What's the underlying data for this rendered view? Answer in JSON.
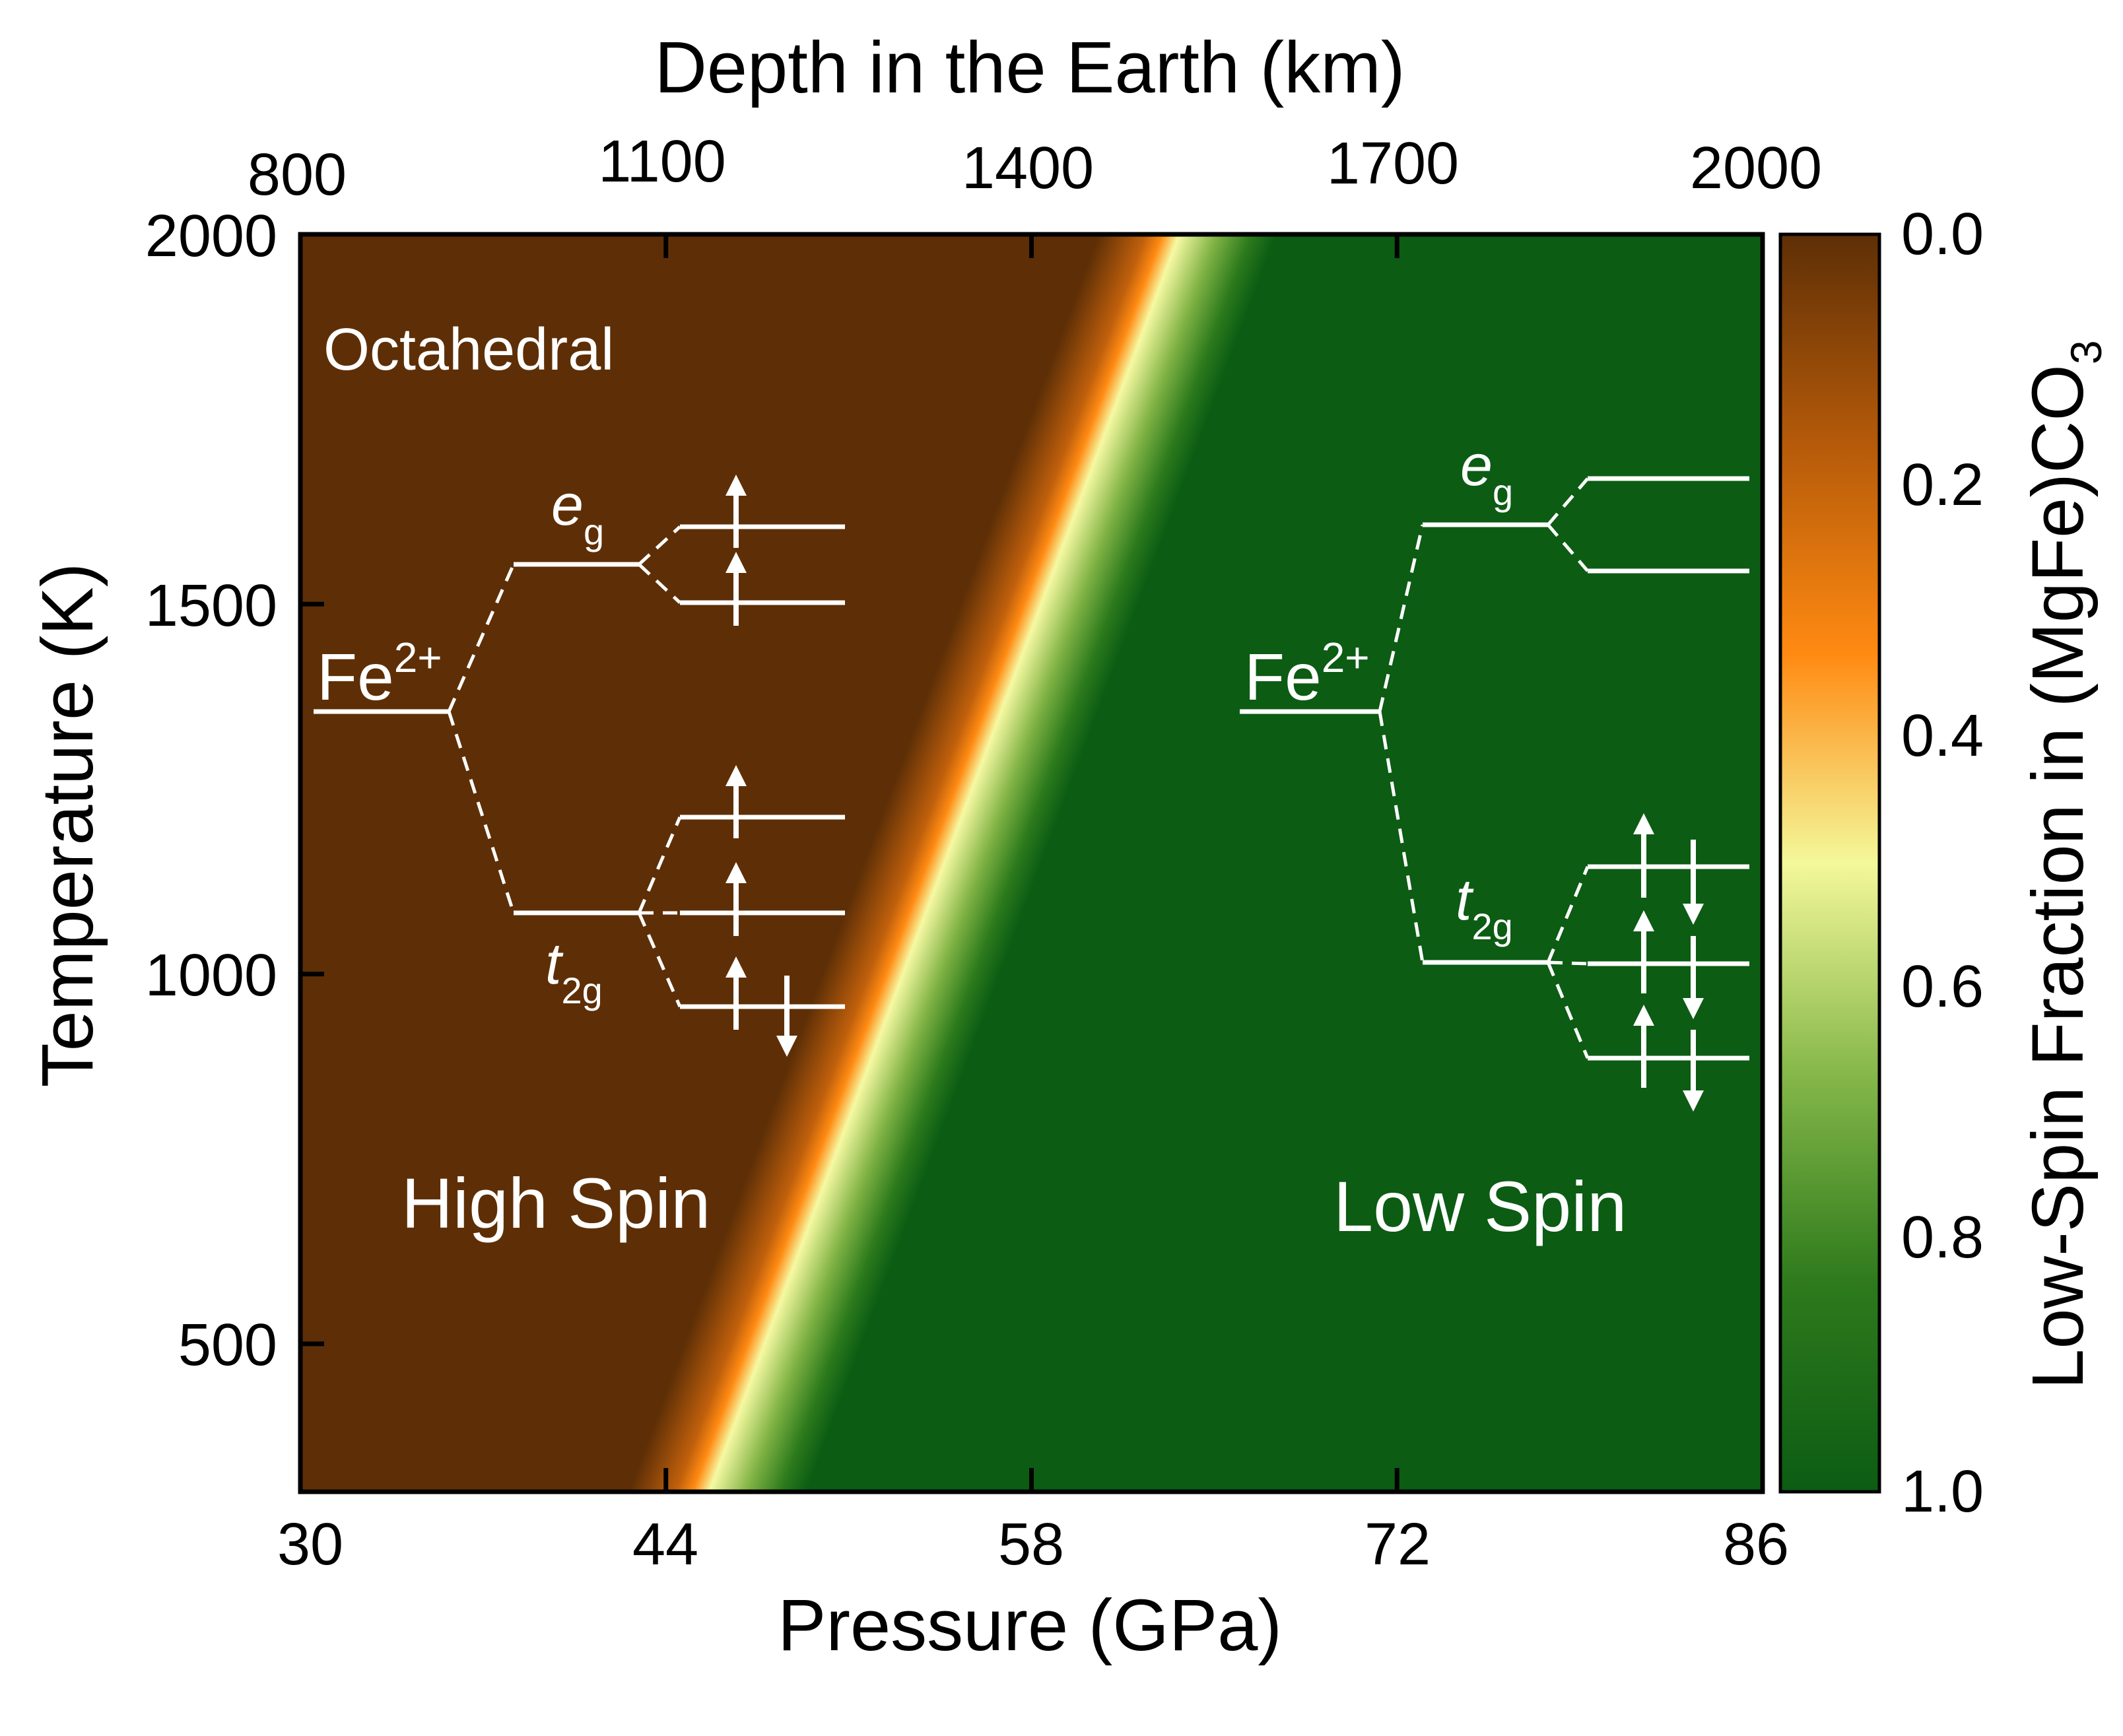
{
  "chart_data": {
    "type": "heatmap",
    "x": {
      "label": "Pressure (GPa)",
      "lim": [
        30,
        86
      ],
      "ticks": [
        "30",
        "44",
        "58",
        "72",
        "86"
      ],
      "tick_values": [
        30,
        44,
        58,
        72,
        86
      ]
    },
    "x_top": {
      "label": "Depth in the Earth (km)",
      "ticks": [
        "800",
        "1100",
        "1400",
        "1700",
        "2000"
      ],
      "tick_values": [
        800,
        1100,
        1400,
        1700,
        2000
      ]
    },
    "y": {
      "label": "Temperature (K)",
      "lim": [
        300,
        2000
      ],
      "ticks": [
        "500",
        "1000",
        "1500",
        "2000"
      ],
      "tick_values": [
        500,
        1000,
        1500,
        2000
      ]
    },
    "colorbar": {
      "label": "Low-Spin Fraction in (MgFe)CO",
      "label_subscript": "3",
      "ticks": [
        "0.0",
        "0.2",
        "0.4",
        "0.6",
        "0.8",
        "1.0"
      ],
      "tick_values": [
        0,
        0.2,
        0.4,
        0.6,
        0.8,
        1.0
      ],
      "range": [
        0,
        1
      ],
      "colormap": [
        "#5e2f06",
        "#b55a0a",
        "#ff8a12",
        "#f4f89a",
        "#86b84a",
        "#2e7a1c",
        "#0c5c14"
      ]
    },
    "transition_midline": {
      "pressure_at_low_T": 45.5,
      "pressure_at_high_T": 63.5,
      "T_low": 300,
      "T_high": 2000
    },
    "regions": {
      "high_spin_label": "High Spin",
      "low_spin_label": "Low Spin",
      "octahedral_label": "Octahedral"
    },
    "annotations": {
      "ion": "Fe",
      "ion_charge": "2+",
      "eg_main": "e",
      "eg_sub": "g",
      "t2g_main": "t",
      "t2g_sub": "2g"
    },
    "colors": {
      "high_spin": "#5e2f06",
      "low_spin": "#0c5c14",
      "transition_center": "#f6f9a2",
      "transition_orange": "#ff8a12"
    }
  }
}
